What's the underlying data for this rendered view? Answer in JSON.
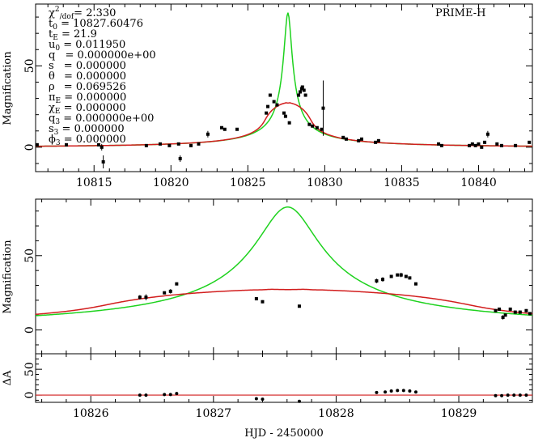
{
  "figure": {
    "telescope_label": "PRIME-H",
    "xlabel": "HJD - 2450000",
    "colors": {
      "model_single": "#1ed21e",
      "model_finite": "#d21e1e",
      "data": "#000000",
      "axes": "#000000"
    }
  },
  "params": [
    {
      "text": "χ²/dof = 2.330"
    },
    {
      "text": "t0 = 10827.60476"
    },
    {
      "text": "tE = 21.9"
    },
    {
      "text": "u0 = 0.011950"
    },
    {
      "text": "q = 0.000000e+00"
    },
    {
      "text": "s = 0.000000"
    },
    {
      "text": "θ = 0.000000"
    },
    {
      "text": "ρ = 0.069526"
    },
    {
      "text": "πE = 0.000000"
    },
    {
      "text": "χE = 0.000000"
    },
    {
      "text": "q3 = 0.000000e+00"
    },
    {
      "text": "s3 = 0.000000"
    },
    {
      "text": "ϕ3 = 0.000000"
    }
  ],
  "chart_data": [
    {
      "id": "top",
      "type": "scatter",
      "title": "",
      "xlabel": "",
      "ylabel": "Magnification",
      "xlim": [
        10811.2,
        10843.5
      ],
      "ylim": [
        -15,
        88
      ],
      "xticks": [
        10815,
        10820,
        10825,
        10830,
        10835,
        10840
      ],
      "yticks": [
        0,
        50
      ],
      "model": {
        "t0": 10827.60476,
        "tE": 21.9,
        "u0": 0.01195,
        "rho": 0.069526
      },
      "points": [
        [
          10811.3,
          1.5,
          0
        ],
        [
          10813.2,
          1.5,
          0
        ],
        [
          10815.3,
          1.5,
          0
        ],
        [
          10815.6,
          -9,
          4
        ],
        [
          10815.5,
          0,
          2
        ],
        [
          10818.4,
          1,
          0
        ],
        [
          10819.3,
          2,
          0
        ],
        [
          10819.9,
          1,
          0
        ],
        [
          10820.5,
          2,
          0
        ],
        [
          10820.6,
          -7,
          2
        ],
        [
          10821.3,
          1,
          0
        ],
        [
          10821.8,
          2,
          0
        ],
        [
          10822.4,
          8,
          2
        ],
        [
          10823.3,
          12,
          0
        ],
        [
          10823.5,
          11,
          0
        ],
        [
          10824.3,
          11,
          0
        ],
        [
          10826.2,
          21,
          0
        ],
        [
          10826.3,
          25,
          0
        ],
        [
          10826.45,
          32,
          0
        ],
        [
          10826.7,
          28,
          0
        ],
        [
          10826.9,
          26,
          0
        ],
        [
          10827.35,
          21,
          0
        ],
        [
          10827.45,
          19,
          0
        ],
        [
          10827.7,
          15,
          0
        ],
        [
          10828.3,
          32,
          1
        ],
        [
          10828.4,
          34,
          1
        ],
        [
          10828.5,
          36,
          1
        ],
        [
          10828.55,
          37,
          1
        ],
        [
          10828.65,
          35,
          1
        ],
        [
          10828.75,
          32,
          1
        ],
        [
          10829.0,
          14,
          0
        ],
        [
          10829.2,
          13,
          0
        ],
        [
          10829.5,
          12,
          0
        ],
        [
          10829.8,
          11,
          0
        ],
        [
          10829.9,
          24,
          17
        ],
        [
          10831.2,
          6,
          0
        ],
        [
          10831.4,
          5,
          0
        ],
        [
          10832.2,
          4,
          0
        ],
        [
          10832.4,
          5,
          0
        ],
        [
          10833.3,
          3,
          0
        ],
        [
          10833.5,
          4,
          0
        ],
        [
          10837.4,
          2,
          0
        ],
        [
          10837.6,
          1,
          0
        ],
        [
          10839.4,
          1,
          0
        ],
        [
          10839.6,
          2,
          0
        ],
        [
          10839.8,
          1,
          0
        ],
        [
          10840.0,
          2,
          0
        ],
        [
          10840.2,
          0,
          0
        ],
        [
          10840.4,
          3,
          0
        ],
        [
          10840.6,
          8,
          2
        ],
        [
          10841.2,
          2,
          0
        ],
        [
          10841.5,
          1,
          0
        ],
        [
          10842.4,
          1,
          0
        ],
        [
          10843.3,
          3,
          0
        ]
      ]
    },
    {
      "id": "zoom",
      "type": "scatter",
      "title": "",
      "xlabel": "",
      "ylabel": "Magnification",
      "xlim": [
        10825.55,
        10829.6
      ],
      "ylim": [
        -16,
        88
      ],
      "xticks": [
        10826,
        10827,
        10828,
        10829
      ],
      "yticks": [
        0,
        50
      ],
      "model": {
        "t0": 10827.60476,
        "tE": 21.9,
        "u0": 0.01195,
        "rho": 0.069526
      },
      "points": [
        [
          10826.4,
          22,
          1.5
        ],
        [
          10826.45,
          22,
          2
        ],
        [
          10826.6,
          25,
          1
        ],
        [
          10826.65,
          26,
          1.5
        ],
        [
          10826.7,
          31,
          1
        ],
        [
          10827.35,
          21,
          1
        ],
        [
          10827.4,
          19,
          1
        ],
        [
          10827.7,
          16,
          1
        ],
        [
          10828.33,
          33,
          1.5
        ],
        [
          10828.38,
          34,
          1.5
        ],
        [
          10828.45,
          36,
          1
        ],
        [
          10828.5,
          37,
          1
        ],
        [
          10828.53,
          37,
          1.5
        ],
        [
          10828.57,
          36,
          1
        ],
        [
          10828.6,
          35,
          1
        ],
        [
          10828.65,
          31,
          1
        ],
        [
          10829.3,
          13,
          1
        ],
        [
          10829.33,
          14,
          1
        ],
        [
          10829.36,
          8.5,
          1.5
        ],
        [
          10829.38,
          10,
          1
        ],
        [
          10829.42,
          14,
          1
        ],
        [
          10829.46,
          12,
          1
        ],
        [
          10829.5,
          12,
          1
        ],
        [
          10829.55,
          13,
          1
        ],
        [
          10829.58,
          11,
          1
        ]
      ]
    },
    {
      "id": "residual",
      "type": "scatter",
      "title": "",
      "xlabel": "HJD - 2450000",
      "ylabel": "ΔA",
      "xlim": [
        10825.55,
        10829.6
      ],
      "ylim": [
        -14,
        80
      ],
      "xticks": [
        10826,
        10827,
        10828,
        10829
      ],
      "yticks": [
        0,
        50
      ],
      "points": [
        [
          10826.4,
          0,
          0
        ],
        [
          10826.45,
          0,
          0
        ],
        [
          10826.6,
          1,
          0
        ],
        [
          10826.65,
          1,
          0
        ],
        [
          10826.7,
          3,
          0
        ],
        [
          10827.35,
          -7,
          0
        ],
        [
          10827.4,
          -8,
          0
        ],
        [
          10827.7,
          -12,
          0
        ],
        [
          10828.33,
          5,
          0
        ],
        [
          10828.4,
          6,
          0
        ],
        [
          10828.45,
          8,
          0
        ],
        [
          10828.5,
          9,
          0
        ],
        [
          10828.55,
          9,
          0
        ],
        [
          10828.6,
          8,
          0
        ],
        [
          10828.65,
          6,
          0
        ],
        [
          10829.3,
          -1,
          0
        ],
        [
          10829.35,
          -1,
          0
        ],
        [
          10829.4,
          0,
          0
        ],
        [
          10829.45,
          0,
          0
        ],
        [
          10829.5,
          0,
          0
        ],
        [
          10829.55,
          0,
          0
        ]
      ]
    }
  ]
}
